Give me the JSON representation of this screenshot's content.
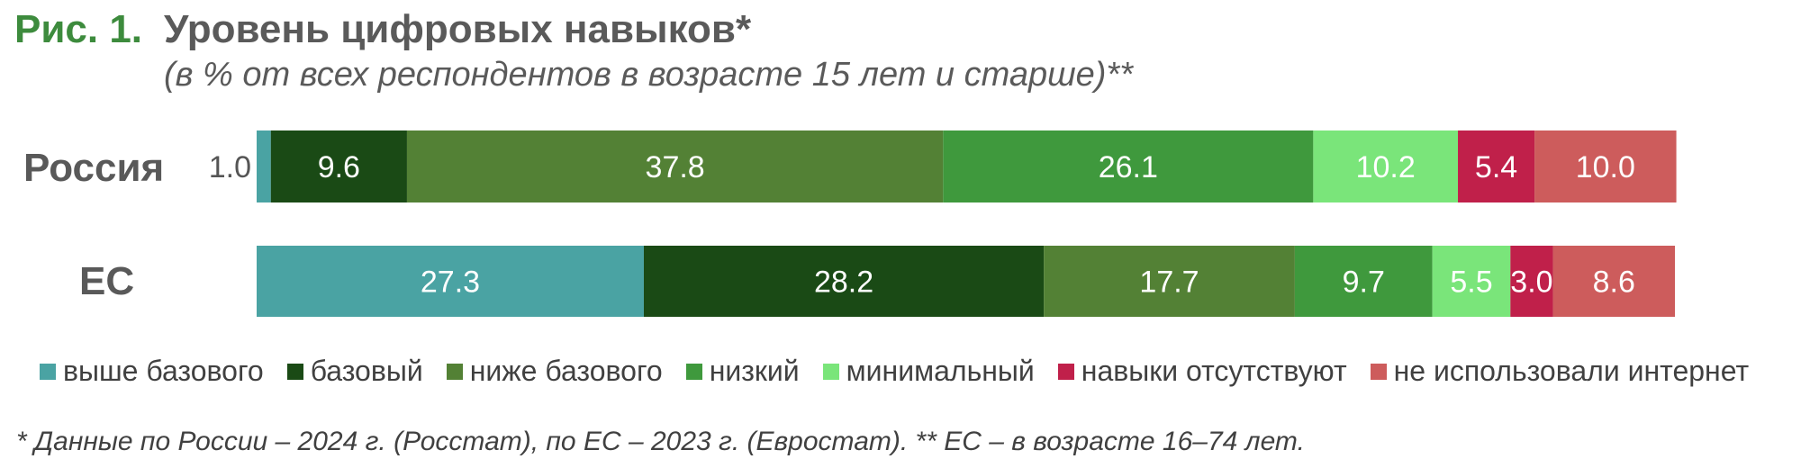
{
  "figure": {
    "label": "Рис. 1.",
    "title": "Уровень цифровых навыков*",
    "subtitle": "(в % от всех респондентов в возрасте 15 лет и старше)**",
    "footnote": "* Данные по России – 2024 г. (Росстат), по ЕС – 2023 г. (Евростат). ** ЕС – в возрасте 16–74 лет."
  },
  "chart_data": {
    "type": "bar",
    "orientation": "horizontal",
    "stacked": true,
    "categories": [
      "Россия",
      "ЕС"
    ],
    "series": [
      {
        "name": "выше базового",
        "color": "#4aa3a3",
        "values": [
          1.0,
          27.3
        ],
        "labels": [
          "1.0",
          "27.3"
        ]
      },
      {
        "name": "базовый",
        "color": "#1a4a15",
        "values": [
          9.6,
          28.2
        ],
        "labels": [
          "9.6",
          "28.2"
        ]
      },
      {
        "name": "ниже базового",
        "color": "#538135",
        "values": [
          37.8,
          17.7
        ],
        "labels": [
          "37.8",
          "17.7"
        ]
      },
      {
        "name": "низкий",
        "color": "#3f993d",
        "values": [
          26.1,
          9.7
        ],
        "labels": [
          "26.1",
          "9.7"
        ]
      },
      {
        "name": "минимальный",
        "color": "#7ae57a",
        "values": [
          10.2,
          5.5
        ],
        "labels": [
          "10.2",
          "5.5"
        ]
      },
      {
        "name": "навыки отсутствуют",
        "color": "#c0204a",
        "values": [
          5.4,
          3.0
        ],
        "labels": [
          "5.4",
          "3.0"
        ]
      },
      {
        "name": "не использовали интернет",
        "color": "#cd5c5c",
        "values": [
          10.0,
          8.6
        ],
        "labels": [
          "10.0",
          "8.6"
        ]
      }
    ],
    "xlim": [
      0,
      100
    ],
    "legend": "bottom",
    "grid": false
  }
}
